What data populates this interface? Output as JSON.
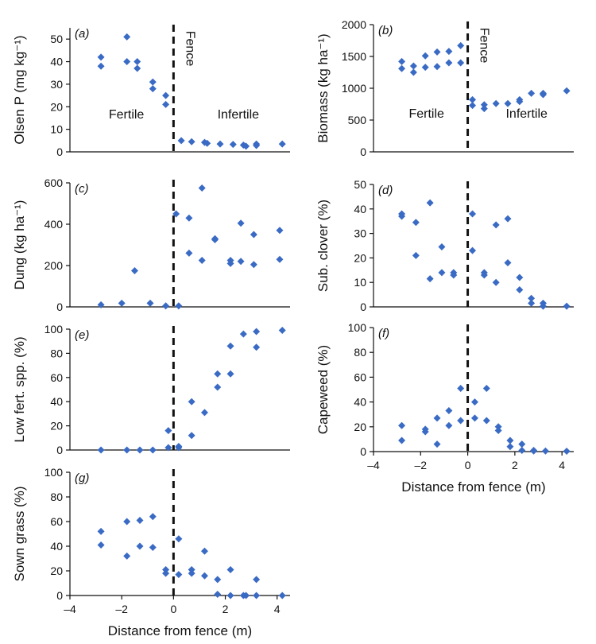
{
  "figure": {
    "marker_color": "#3a6bc4",
    "axis_color": "#111111",
    "x_axis_title": "Distance from fence (m)"
  },
  "chart_data": [
    {
      "id": "a",
      "type": "scatter",
      "panel_label": "(a)",
      "ylabel": "Olsen P (mg kg⁻¹)",
      "ylim": [
        0,
        55
      ],
      "yticks": [
        0,
        10,
        20,
        30,
        40,
        50
      ],
      "xlim": [
        -4,
        4.5
      ],
      "xticks": [],
      "xlabel": "",
      "show_x_tick_labels": false,
      "annotations": [
        "Fertile",
        "Infertile",
        "Fence"
      ],
      "points": [
        [
          -2.8,
          42
        ],
        [
          -2.8,
          38
        ],
        [
          -1.8,
          51
        ],
        [
          -1.8,
          40
        ],
        [
          -1.4,
          40
        ],
        [
          -1.4,
          37
        ],
        [
          -0.8,
          31
        ],
        [
          -0.8,
          28
        ],
        [
          -0.3,
          25
        ],
        [
          -0.3,
          21
        ],
        [
          0.3,
          5
        ],
        [
          0.7,
          4.5
        ],
        [
          1.2,
          4.2
        ],
        [
          1.3,
          3.8
        ],
        [
          1.8,
          3.5
        ],
        [
          2.3,
          3.3
        ],
        [
          2.7,
          3
        ],
        [
          2.8,
          2.5
        ],
        [
          3.2,
          3.5
        ],
        [
          3.2,
          2.8
        ],
        [
          4.2,
          3.5
        ]
      ]
    },
    {
      "id": "b",
      "type": "scatter",
      "panel_label": "(b)",
      "ylabel": "Biomass (kg ha⁻¹)",
      "ylim": [
        0,
        2000
      ],
      "yticks": [
        0,
        500,
        1000,
        1500,
        2000
      ],
      "xlim": [
        -4,
        4.5
      ],
      "xticks": [],
      "xlabel": "",
      "show_x_tick_labels": false,
      "annotations": [
        "Fertile",
        "Infertile",
        "Fence"
      ],
      "points": [
        [
          -2.8,
          1420
        ],
        [
          -2.8,
          1310
        ],
        [
          -2.3,
          1350
        ],
        [
          -2.3,
          1250
        ],
        [
          -1.8,
          1510
        ],
        [
          -1.8,
          1330
        ],
        [
          -1.3,
          1570
        ],
        [
          -1.3,
          1340
        ],
        [
          -0.8,
          1580
        ],
        [
          -0.8,
          1400
        ],
        [
          -0.3,
          1670
        ],
        [
          -0.3,
          1400
        ],
        [
          0.2,
          820
        ],
        [
          0.2,
          730
        ],
        [
          0.7,
          740
        ],
        [
          0.7,
          680
        ],
        [
          1.2,
          760
        ],
        [
          1.7,
          760
        ],
        [
          2.2,
          820
        ],
        [
          2.2,
          790
        ],
        [
          2.7,
          920
        ],
        [
          3.2,
          920
        ],
        [
          3.2,
          900
        ],
        [
          4.2,
          960
        ]
      ]
    },
    {
      "id": "c",
      "type": "scatter",
      "panel_label": "(c)",
      "ylabel": "Dung (kg ha⁻¹)",
      "ylim": [
        0,
        600
      ],
      "yticks": [
        0,
        200,
        400,
        600
      ],
      "xlim": [
        -4,
        4.5
      ],
      "xticks": [],
      "xlabel": "",
      "show_x_tick_labels": false,
      "annotations": [],
      "points": [
        [
          -2.8,
          10
        ],
        [
          -2.0,
          18
        ],
        [
          -1.5,
          175
        ],
        [
          -0.9,
          18
        ],
        [
          -0.3,
          5
        ],
        [
          0.1,
          450
        ],
        [
          0.2,
          5
        ],
        [
          0.6,
          430
        ],
        [
          0.6,
          260
        ],
        [
          1.1,
          575
        ],
        [
          1.1,
          225
        ],
        [
          1.6,
          330
        ],
        [
          1.6,
          325
        ],
        [
          2.2,
          225
        ],
        [
          2.2,
          210
        ],
        [
          2.6,
          405
        ],
        [
          2.6,
          220
        ],
        [
          3.1,
          350
        ],
        [
          3.1,
          205
        ],
        [
          4.1,
          370
        ],
        [
          4.1,
          230
        ]
      ]
    },
    {
      "id": "d",
      "type": "scatter",
      "panel_label": "(d)",
      "ylabel": "Sub. clover (%)",
      "ylim": [
        0,
        50
      ],
      "yticks": [
        0,
        10,
        20,
        30,
        40,
        50
      ],
      "xlim": [
        -4,
        4.5
      ],
      "xticks": [],
      "xlabel": "",
      "show_x_tick_labels": false,
      "annotations": [],
      "points": [
        [
          -2.8,
          38
        ],
        [
          -2.8,
          37
        ],
        [
          -2.2,
          34.5
        ],
        [
          -2.2,
          21
        ],
        [
          -1.6,
          42.5
        ],
        [
          -1.6,
          11.5
        ],
        [
          -1.1,
          24.5
        ],
        [
          -1.1,
          14
        ],
        [
          -0.6,
          14
        ],
        [
          -0.6,
          13
        ],
        [
          0.2,
          38
        ],
        [
          0.2,
          23
        ],
        [
          0.7,
          14
        ],
        [
          0.7,
          13
        ],
        [
          1.2,
          33.5
        ],
        [
          1.2,
          10
        ],
        [
          1.7,
          36
        ],
        [
          1.7,
          18
        ],
        [
          2.2,
          12
        ],
        [
          2.2,
          7
        ],
        [
          2.7,
          3.5
        ],
        [
          2.7,
          1.5
        ],
        [
          3.2,
          1.5
        ],
        [
          3.2,
          0.3
        ],
        [
          4.2,
          0.3
        ]
      ]
    },
    {
      "id": "e",
      "type": "scatter",
      "panel_label": "(e)",
      "ylabel": "Low fert. spp. (%)",
      "ylim": [
        0,
        100
      ],
      "yticks": [
        0,
        20,
        40,
        60,
        80,
        100
      ],
      "xlim": [
        -4,
        4.5
      ],
      "xticks": [],
      "xlabel": "",
      "show_x_tick_labels": false,
      "annotations": [],
      "points": [
        [
          -2.8,
          0
        ],
        [
          -1.8,
          0
        ],
        [
          -1.3,
          0
        ],
        [
          -0.8,
          0
        ],
        [
          -0.2,
          16
        ],
        [
          -0.2,
          2
        ],
        [
          0.2,
          3
        ],
        [
          0.2,
          2
        ],
        [
          0.7,
          40
        ],
        [
          0.7,
          12
        ],
        [
          1.2,
          31
        ],
        [
          1.7,
          63
        ],
        [
          1.7,
          52
        ],
        [
          2.2,
          86
        ],
        [
          2.2,
          63
        ],
        [
          2.7,
          96
        ],
        [
          3.2,
          98
        ],
        [
          3.2,
          85
        ],
        [
          4.2,
          99
        ]
      ]
    },
    {
      "id": "f",
      "type": "scatter",
      "panel_label": "(f)",
      "ylabel": "Capeweed (%)",
      "ylim": [
        0,
        100
      ],
      "yticks": [
        0,
        20,
        40,
        60,
        80,
        100
      ],
      "xlim": [
        -4,
        4.5
      ],
      "xticks": [
        -4,
        -2,
        0,
        2,
        4
      ],
      "xlabel": "Distance from fence (m)",
      "show_x_tick_labels": true,
      "annotations": [],
      "points": [
        [
          -2.8,
          21
        ],
        [
          -2.8,
          9
        ],
        [
          -1.8,
          18
        ],
        [
          -1.8,
          16
        ],
        [
          -1.3,
          27
        ],
        [
          -1.3,
          6
        ],
        [
          -0.8,
          33
        ],
        [
          -0.8,
          21
        ],
        [
          -0.3,
          51
        ],
        [
          -0.3,
          25
        ],
        [
          0.3,
          40
        ],
        [
          0.3,
          27
        ],
        [
          0.8,
          51
        ],
        [
          0.8,
          25
        ],
        [
          1.3,
          20
        ],
        [
          1.3,
          17
        ],
        [
          1.8,
          9
        ],
        [
          1.8,
          4
        ],
        [
          2.3,
          6
        ],
        [
          2.3,
          1
        ],
        [
          2.8,
          1
        ],
        [
          2.8,
          0.5
        ],
        [
          3.3,
          0.5
        ],
        [
          4.2,
          0.3
        ]
      ]
    },
    {
      "id": "g",
      "type": "scatter",
      "panel_label": "(g)",
      "ylabel": "Sown grass (%)",
      "ylim": [
        0,
        100
      ],
      "yticks": [
        0,
        20,
        40,
        60,
        80,
        100
      ],
      "xlim": [
        -4,
        4.5
      ],
      "xticks": [
        -4,
        -2,
        0,
        2,
        4
      ],
      "xlabel": "Distance from fence (m)",
      "show_x_tick_labels": true,
      "annotations": [],
      "points": [
        [
          -2.8,
          52
        ],
        [
          -2.8,
          41
        ],
        [
          -1.8,
          60
        ],
        [
          -1.8,
          32
        ],
        [
          -1.3,
          61
        ],
        [
          -1.3,
          40
        ],
        [
          -0.8,
          64
        ],
        [
          -0.8,
          39
        ],
        [
          -0.3,
          21
        ],
        [
          -0.3,
          18
        ],
        [
          0.2,
          46
        ],
        [
          0.2,
          17
        ],
        [
          0.7,
          21
        ],
        [
          0.7,
          18
        ],
        [
          1.2,
          36
        ],
        [
          1.2,
          16
        ],
        [
          1.7,
          13
        ],
        [
          1.7,
          1
        ],
        [
          2.2,
          21
        ],
        [
          2.2,
          0
        ],
        [
          2.7,
          0
        ],
        [
          2.8,
          0
        ],
        [
          3.2,
          13
        ],
        [
          3.2,
          0
        ],
        [
          4.2,
          0
        ]
      ]
    }
  ]
}
